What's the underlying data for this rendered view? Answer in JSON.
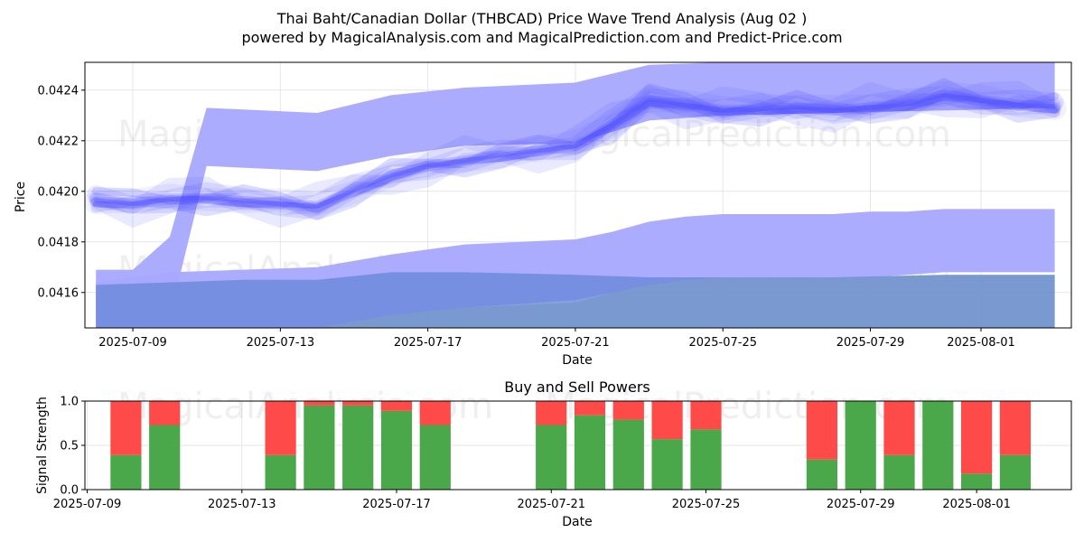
{
  "title_line1": "Thai Baht/Canadian Dollar (THBCAD) Price Wave Trend Analysis (Aug 02 )",
  "title_line2": "powered by MagicalAnalysis.com and MagicalPrediction.com and Predict-Price.com",
  "watermarks": [
    "MagicalAnalysis.com",
    "MagicalPrediction.com"
  ],
  "colors": {
    "wave": "#4d4dff",
    "band_upper": "#a8a8ff",
    "band_lower": "#6a88d8",
    "band_green": "#a6d3a0",
    "buy": "#4aa84a",
    "sell": "#ff4a4a",
    "grid": "#e6e6e6"
  },
  "chart_data": [
    {
      "type": "area",
      "name": "price-wave-chart",
      "xlabel": "Date",
      "ylabel": "Price",
      "ylim": [
        0.04146,
        0.04251
      ],
      "x_ticks": [
        "2025-07-09",
        "2025-07-13",
        "2025-07-17",
        "2025-07-21",
        "2025-07-25",
        "2025-07-29",
        "2025-08-01"
      ],
      "y_ticks": [
        "0.0416",
        "0.0418",
        "0.0420",
        "0.0422",
        "0.0424"
      ],
      "grid": true,
      "dates": [
        "2025-07-08",
        "2025-07-09",
        "2025-07-10",
        "2025-07-11",
        "2025-07-12",
        "2025-07-13",
        "2025-07-14",
        "2025-07-15",
        "2025-07-16",
        "2025-07-17",
        "2025-07-18",
        "2025-07-19",
        "2025-07-20",
        "2025-07-21",
        "2025-07-22",
        "2025-07-23",
        "2025-07-24",
        "2025-07-25",
        "2025-07-26",
        "2025-07-27",
        "2025-07-28",
        "2025-07-29",
        "2025-07-30",
        "2025-07-31",
        "2025-08-01",
        "2025-08-02",
        "2025-08-03"
      ],
      "wave_center": [
        0.04196,
        0.04195,
        0.04197,
        0.04197,
        0.04196,
        0.04195,
        0.04194,
        0.042,
        0.04206,
        0.0421,
        0.04212,
        0.04214,
        0.04216,
        0.04218,
        0.04226,
        0.04236,
        0.04234,
        0.04232,
        0.04232,
        0.04233,
        0.04232,
        0.04233,
        0.04234,
        0.04238,
        0.04236,
        0.04234,
        0.04233
      ],
      "bands": [
        {
          "name": "upper-band",
          "dates": [
            "2025-07-08",
            "2025-07-09",
            "2025-07-10",
            "2025-07-11",
            "2025-07-14",
            "2025-07-16",
            "2025-07-18",
            "2025-07-21",
            "2025-07-23",
            "2025-07-25",
            "2025-07-28",
            "2025-07-31",
            "2025-08-03"
          ],
          "upper": [
            0.04169,
            0.04169,
            0.04182,
            0.04233,
            0.04231,
            0.04238,
            0.04241,
            0.04243,
            0.0425,
            0.04251,
            0.04251,
            0.04251,
            0.04251
          ],
          "lower": [
            0.04146,
            0.04146,
            0.0415,
            0.0421,
            0.04208,
            0.04214,
            0.04218,
            0.04219,
            0.04228,
            0.0423,
            0.04231,
            0.04232,
            0.04233
          ]
        },
        {
          "name": "middle-band",
          "dates": [
            "2025-07-08",
            "2025-07-10",
            "2025-07-12",
            "2025-07-14",
            "2025-07-16",
            "2025-07-18",
            "2025-07-21",
            "2025-07-22",
            "2025-07-23",
            "2025-07-24",
            "2025-07-25",
            "2025-07-28",
            "2025-07-29",
            "2025-07-30",
            "2025-07-31",
            "2025-08-01",
            "2025-08-03"
          ],
          "upper": [
            0.04164,
            0.04168,
            0.04169,
            0.0417,
            0.04175,
            0.04179,
            0.04181,
            0.04184,
            0.04188,
            0.0419,
            0.04191,
            0.04191,
            0.04192,
            0.04192,
            0.04193,
            0.04193,
            0.04193
          ],
          "lower": [
            0.04146,
            0.04146,
            0.04146,
            0.04146,
            0.04151,
            0.04154,
            0.04157,
            0.0416,
            0.04163,
            0.04165,
            0.04166,
            0.04166,
            0.04166,
            0.04167,
            0.04168,
            0.04168,
            0.04168
          ]
        },
        {
          "name": "lower-band",
          "dates": [
            "2025-07-08",
            "2025-07-10",
            "2025-07-12",
            "2025-07-14",
            "2025-07-16",
            "2025-07-18",
            "2025-07-21",
            "2025-07-23",
            "2025-07-25",
            "2025-07-28",
            "2025-07-31",
            "2025-08-03"
          ],
          "upper": [
            0.04163,
            0.04164,
            0.04165,
            0.04165,
            0.04168,
            0.04168,
            0.04167,
            0.04166,
            0.04166,
            0.04166,
            0.04167,
            0.04167
          ],
          "lower": [
            0.04146,
            0.04146,
            0.04146,
            0.04146,
            0.04146,
            0.04146,
            0.04146,
            0.04146,
            0.04146,
            0.04146,
            0.04146,
            0.04146
          ]
        },
        {
          "name": "green-band",
          "dates": [
            "2025-07-08",
            "2025-07-10",
            "2025-07-12",
            "2025-07-14",
            "2025-07-16",
            "2025-07-18",
            "2025-07-21",
            "2025-07-22",
            "2025-07-23",
            "2025-07-24",
            "2025-07-25",
            "2025-07-28",
            "2025-07-31",
            "2025-08-03"
          ],
          "upper": [
            0.04146,
            0.04146,
            0.04146,
            0.04146,
            0.04151,
            0.04154,
            0.04156,
            0.0416,
            0.04164,
            0.04166,
            0.04166,
            0.04166,
            0.04167,
            0.04167
          ],
          "lower": [
            0.04146,
            0.04146,
            0.04146,
            0.04146,
            0.04146,
            0.04146,
            0.04146,
            0.04146,
            0.04146,
            0.04146,
            0.04146,
            0.04146,
            0.04146,
            0.04146
          ]
        }
      ]
    },
    {
      "type": "bar",
      "name": "buy-sell-powers-chart",
      "title": "Buy and Sell Powers",
      "xlabel": "Date",
      "ylabel": "Signal Strength",
      "ylim": [
        0,
        1
      ],
      "y_ticks": [
        "0.0",
        "0.5",
        "1.0"
      ],
      "x_ticks": [
        "2025-07-09",
        "2025-07-13",
        "2025-07-17",
        "2025-07-21",
        "2025-07-25",
        "2025-07-29",
        "2025-08-01"
      ],
      "stacked": true,
      "grid": true,
      "categories": [
        "2025-07-10",
        "2025-07-11",
        "2025-07-14",
        "2025-07-15",
        "2025-07-16",
        "2025-07-17",
        "2025-07-18",
        "2025-07-21",
        "2025-07-22",
        "2025-07-23",
        "2025-07-24",
        "2025-07-25",
        "2025-07-28",
        "2025-07-29",
        "2025-07-30",
        "2025-07-31",
        "2025-08-01",
        "2025-08-02"
      ],
      "series": [
        {
          "values": [
            0.39,
            0.73,
            0.39,
            0.95,
            0.95,
            0.89,
            0.73,
            0.73,
            0.84,
            0.79,
            0.57,
            0.68,
            0.34,
            1.0,
            0.39,
            1.0,
            0.18,
            0.39
          ]
        },
        {
          "values": [
            0.61,
            0.27,
            0.61,
            0.05,
            0.05,
            0.11,
            0.27,
            0.27,
            0.16,
            0.21,
            0.43,
            0.32,
            0.66,
            0.0,
            0.61,
            0.0,
            0.82,
            0.61
          ]
        }
      ]
    }
  ]
}
